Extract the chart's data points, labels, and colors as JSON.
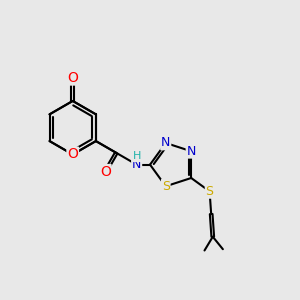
{
  "background_color": "#e8e8e8",
  "bond_color": "#000000",
  "bond_width": 1.5,
  "atom_colors": {
    "O": "#ff0000",
    "N": "#0000cc",
    "S": "#ccaa00",
    "H": "#20b2aa",
    "C": "#000000"
  },
  "fig_width": 3.0,
  "fig_height": 3.0,
  "dpi": 100
}
